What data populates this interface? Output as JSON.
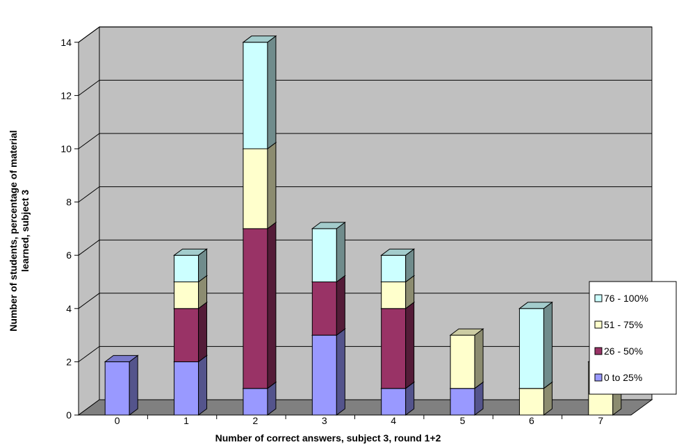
{
  "chart_data": {
    "type": "bar",
    "stacked": true,
    "style": "3d",
    "categories": [
      "0",
      "1",
      "2",
      "3",
      "4",
      "5",
      "6",
      "7"
    ],
    "series": [
      {
        "name": "0 to 25%",
        "color": "#9999FF",
        "values": [
          2,
          2,
          1,
          3,
          1,
          1,
          0,
          0
        ]
      },
      {
        "name": "26 - 50%",
        "color": "#993366",
        "values": [
          0,
          2,
          6,
          2,
          3,
          0,
          0,
          0
        ]
      },
      {
        "name": "51 - 75%",
        "color": "#FFFFCC",
        "values": [
          0,
          1,
          3,
          0,
          1,
          2,
          1,
          2
        ]
      },
      {
        "name": "76 - 100%",
        "color": "#CCFFFF",
        "values": [
          0,
          1,
          4,
          2,
          1,
          0,
          3,
          0
        ]
      }
    ],
    "y_ticks": [
      "0",
      "2",
      "4",
      "6",
      "8",
      "10",
      "12",
      "14"
    ],
    "ylim": [
      0,
      14
    ],
    "xlabel": "Number of correct answers, subject 3, round 1+2",
    "ylabel_lines": [
      "Number of students, percentage of material",
      "learned, subject 3"
    ],
    "grid": true,
    "wall_color": "#C0C0C0",
    "floor_color": "#808080",
    "legend": {
      "position": "right",
      "entries": [
        "76 - 100%",
        "51 - 75%",
        "26 - 50%",
        "0 to 25%"
      ]
    }
  }
}
